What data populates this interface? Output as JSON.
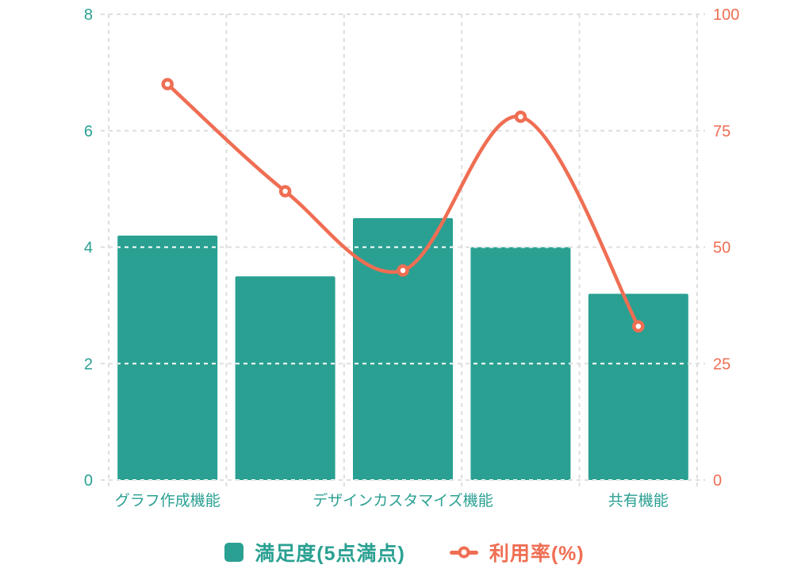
{
  "chart_data": {
    "type": "combo",
    "title": "",
    "categories": [
      "グラフ作成機能",
      "",
      "デザインカスタマイズ機能",
      "",
      "共有機能"
    ],
    "series": [
      {
        "name": "満足度(5点満点)",
        "type": "bar",
        "axis": "left",
        "color": "#2aa092",
        "values": [
          4.2,
          3.5,
          4.5,
          4.0,
          3.2
        ]
      },
      {
        "name": "利用率(%)",
        "type": "line",
        "axis": "right",
        "color": "#ef6e53",
        "values": [
          85,
          62,
          45,
          78,
          33
        ]
      }
    ],
    "axes": {
      "left": {
        "min": 0,
        "max": 8,
        "ticks": [
          "0",
          "2",
          "4",
          "6",
          "8"
        ],
        "color": "#2aa092"
      },
      "right": {
        "min": 0,
        "max": 100,
        "ticks": [
          "0",
          "25",
          "50",
          "75",
          "100"
        ],
        "color": "#ef6e53"
      }
    },
    "grid": {
      "style": "dashed",
      "color_on_background": "#dedede",
      "color_on_bars": "#ffffff"
    },
    "legend": {
      "position": "bottom",
      "items": [
        {
          "label": "満足度(5点満点)",
          "marker": "square",
          "color": "#2aa092"
        },
        {
          "label": "利用率(%)",
          "marker": "line-dot",
          "color": "#ef6e53"
        }
      ]
    },
    "background": "#ffffff"
  }
}
